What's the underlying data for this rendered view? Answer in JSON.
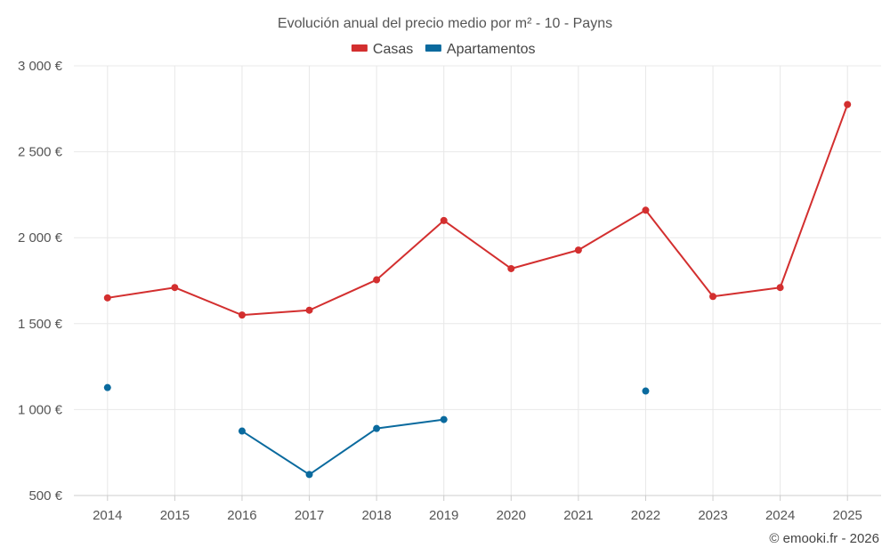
{
  "chart_data": {
    "type": "line",
    "title": "Evolución anual del precio medio por m² - 10 - Payns",
    "xlabel": "",
    "ylabel": "",
    "categories": [
      "2014",
      "2015",
      "2016",
      "2017",
      "2018",
      "2019",
      "2020",
      "2021",
      "2022",
      "2023",
      "2024",
      "2025"
    ],
    "ylim": [
      500,
      3000
    ],
    "y_ticks": [
      500,
      1000,
      1500,
      2000,
      2500,
      3000
    ],
    "y_tick_labels": [
      "500 €",
      "1 000 €",
      "1 500 €",
      "2 000 €",
      "2 500 €",
      "3 000 €"
    ],
    "grid": true,
    "legend_position": "top-center",
    "series": [
      {
        "name": "Casas",
        "color": "#d32f2f",
        "values": [
          1650,
          1710,
          1550,
          1578,
          1755,
          2100,
          1820,
          1928,
          2160,
          1658,
          1710,
          2775
        ]
      },
      {
        "name": "Apartamentos",
        "color": "#0a6a9e",
        "values": [
          1128,
          null,
          875,
          622,
          890,
          942,
          null,
          null,
          1108,
          null,
          null,
          null
        ]
      }
    ]
  },
  "credit": "© emooki.fr - 2026"
}
